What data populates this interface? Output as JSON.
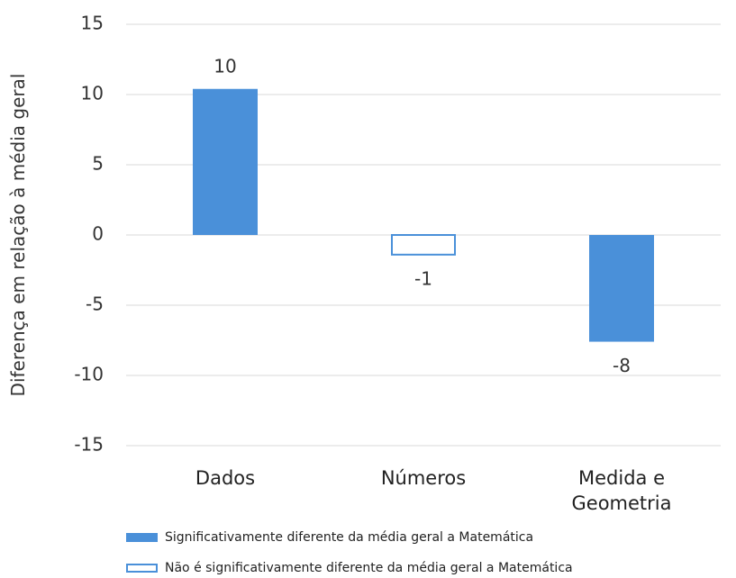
{
  "chart_data": {
    "type": "bar",
    "y_label": "Diferença em relação à média geral",
    "categories": [
      "Dados",
      "Números",
      "Medida e Geometria"
    ],
    "series": [
      {
        "name": "Significativamente diferente da média geral a Matemática",
        "color": "#4a90d9",
        "fill": true,
        "values": [
          10.4,
          null,
          -7.6
        ],
        "value_labels": [
          "10",
          null,
          "-8"
        ]
      },
      {
        "name": "Não é significativamente diferente da média geral a Matemática",
        "color": "#4a90d9",
        "fill": false,
        "values": [
          null,
          -1.4,
          null
        ],
        "value_labels": [
          null,
          "-1",
          null
        ]
      }
    ],
    "ylim": [
      -15,
      15
    ],
    "yticks": [
      -15,
      -10,
      -5,
      0,
      5,
      10,
      15
    ],
    "grid": true
  }
}
